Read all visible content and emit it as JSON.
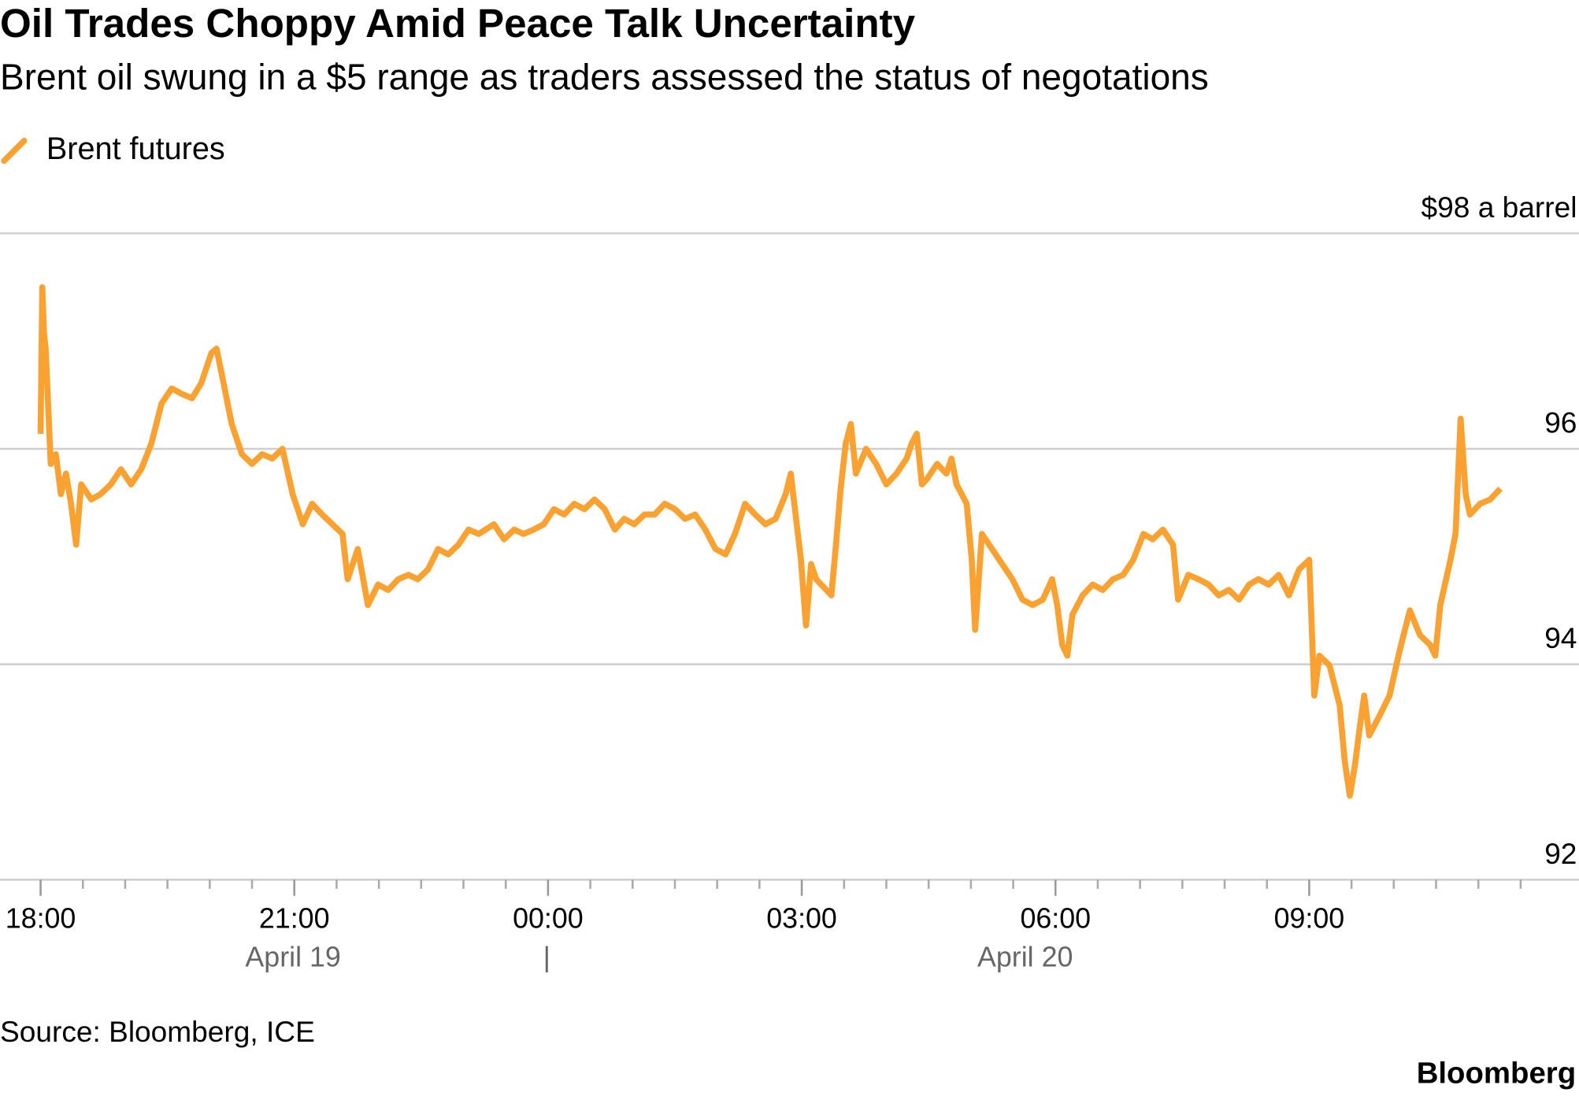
{
  "chart_data": {
    "type": "line",
    "title": "Oil Trades Choppy Amid Peace Talk Uncertainty",
    "subtitle": "Brent oil swung in a $5 range as traders assessed the status of negotations",
    "source": "Source: Bloomberg, ICE",
    "brand": "Bloomberg",
    "x": [
      0,
      0.02,
      0.04,
      0.06,
      0.12,
      0.18,
      0.24,
      0.3,
      0.36,
      0.42,
      0.48,
      0.6,
      0.71,
      0.83,
      0.95,
      1.07,
      1.19,
      1.31,
      1.43,
      1.55,
      1.67,
      1.79,
      1.9,
      2.02,
      2.08,
      2.14,
      2.26,
      2.38,
      2.5,
      2.62,
      2.74,
      2.86,
      2.98,
      3.1,
      3.21,
      3.33,
      3.45,
      3.57,
      3.63,
      3.75,
      3.87,
      3.99,
      4.11,
      4.23,
      4.35,
      4.46,
      4.58,
      4.7,
      4.82,
      4.94,
      5.06,
      5.18,
      5.36,
      5.48,
      5.6,
      5.71,
      5.83,
      5.95,
      6.07,
      6.19,
      6.31,
      6.43,
      6.55,
      6.67,
      6.79,
      6.9,
      7.02,
      7.14,
      7.26,
      7.38,
      7.5,
      7.62,
      7.74,
      7.86,
      7.98,
      8.1,
      8.21,
      8.33,
      8.45,
      8.57,
      8.69,
      8.81,
      8.87,
      8.99,
      9.05,
      9.11,
      9.17,
      9.29,
      9.35,
      9.4,
      9.46,
      9.52,
      9.58,
      9.64,
      9.76,
      9.88,
      10.0,
      10.12,
      10.24,
      10.3,
      10.36,
      10.42,
      10.48,
      10.6,
      10.71,
      10.77,
      10.83,
      10.95,
      11.01,
      11.05,
      11.13,
      11.25,
      11.37,
      11.49,
      11.61,
      11.73,
      11.85,
      11.96,
      12.02,
      12.08,
      12.14,
      12.2,
      12.32,
      12.44,
      12.56,
      12.68,
      12.8,
      12.92,
      13.04,
      13.15,
      13.27,
      13.39,
      13.45,
      13.57,
      13.69,
      13.81,
      13.93,
      14.05,
      14.17,
      14.29,
      14.4,
      14.52,
      14.64,
      14.76,
      14.88,
      15.0,
      15.06,
      15.12,
      15.24,
      15.36,
      15.42,
      15.48,
      15.54,
      15.6,
      15.65,
      15.71,
      15.83,
      15.95,
      16.07,
      16.19,
      16.31,
      16.43,
      16.49,
      16.55,
      16.67,
      16.73,
      16.79,
      16.85,
      16.9,
      17.02,
      17.14,
      17.26
    ],
    "series": [
      {
        "name": "Brent futures",
        "color": "#f9a231",
        "values": [
          96.14,
          97.5,
          97.07,
          96.93,
          95.86,
          95.95,
          95.58,
          95.77,
          95.49,
          95.11,
          95.67,
          95.53,
          95.58,
          95.67,
          95.81,
          95.67,
          95.81,
          96.05,
          96.42,
          96.56,
          96.51,
          96.47,
          96.61,
          96.89,
          96.93,
          96.7,
          96.23,
          95.95,
          95.86,
          95.95,
          95.91,
          96.0,
          95.58,
          95.3,
          95.49,
          95.39,
          95.3,
          95.21,
          94.79,
          95.07,
          94.55,
          94.74,
          94.69,
          94.79,
          94.83,
          94.79,
          94.88,
          95.07,
          95.02,
          95.11,
          95.25,
          95.21,
          95.3,
          95.16,
          95.25,
          95.21,
          95.25,
          95.3,
          95.44,
          95.39,
          95.49,
          95.44,
          95.53,
          95.44,
          95.25,
          95.35,
          95.3,
          95.39,
          95.39,
          95.49,
          95.44,
          95.35,
          95.39,
          95.25,
          95.07,
          95.02,
          95.21,
          95.49,
          95.39,
          95.3,
          95.35,
          95.58,
          95.77,
          94.97,
          94.36,
          94.93,
          94.79,
          94.69,
          94.64,
          95.07,
          95.63,
          96.05,
          96.23,
          95.77,
          96.0,
          95.86,
          95.67,
          95.77,
          95.91,
          96.05,
          96.14,
          95.67,
          95.72,
          95.86,
          95.77,
          95.91,
          95.67,
          95.49,
          94.97,
          94.32,
          95.21,
          95.07,
          94.93,
          94.79,
          94.6,
          94.55,
          94.6,
          94.79,
          94.55,
          94.18,
          94.08,
          94.46,
          94.64,
          94.74,
          94.69,
          94.79,
          94.83,
          94.97,
          95.21,
          95.16,
          95.25,
          95.11,
          94.6,
          94.83,
          94.79,
          94.74,
          94.64,
          94.69,
          94.6,
          94.74,
          94.79,
          94.74,
          94.83,
          94.64,
          94.88,
          94.97,
          93.71,
          94.08,
          93.99,
          93.62,
          93.1,
          92.78,
          93.06,
          93.43,
          93.71,
          93.34,
          93.52,
          93.71,
          94.13,
          94.5,
          94.27,
          94.18,
          94.08,
          94.55,
          94.97,
          95.21,
          96.28,
          95.58,
          95.39,
          95.49,
          95.53,
          95.63
        ]
      }
    ],
    "xlim": [
      -0.48,
      18.19
    ],
    "xticks": [
      {
        "value": 0,
        "label": "18:00"
      },
      {
        "value": 3,
        "label": "21:00"
      },
      {
        "value": 6,
        "label": "00:00"
      },
      {
        "value": 9,
        "label": "03:00"
      },
      {
        "value": 12,
        "label": "06:00"
      },
      {
        "value": 15,
        "label": "09:00"
      }
    ],
    "xminorticks": [
      0.5,
      1,
      1.5,
      2,
      2.5,
      3.5,
      4,
      4.5,
      5,
      5.5,
      6.5,
      7,
      7.5,
      8,
      8.5,
      9.5,
      10,
      10.5,
      11,
      11.5,
      12.5,
      13,
      13.5,
      14,
      14.5,
      15.5,
      16,
      16.5,
      17,
      17.5
    ],
    "date_labels": [
      "April 19",
      "|",
      "April 20"
    ],
    "ylim": [
      92,
      98
    ],
    "yticks": [
      92,
      94,
      96,
      {
        "value": 98,
        "label": "$98 a barrel"
      }
    ],
    "grid": true
  }
}
